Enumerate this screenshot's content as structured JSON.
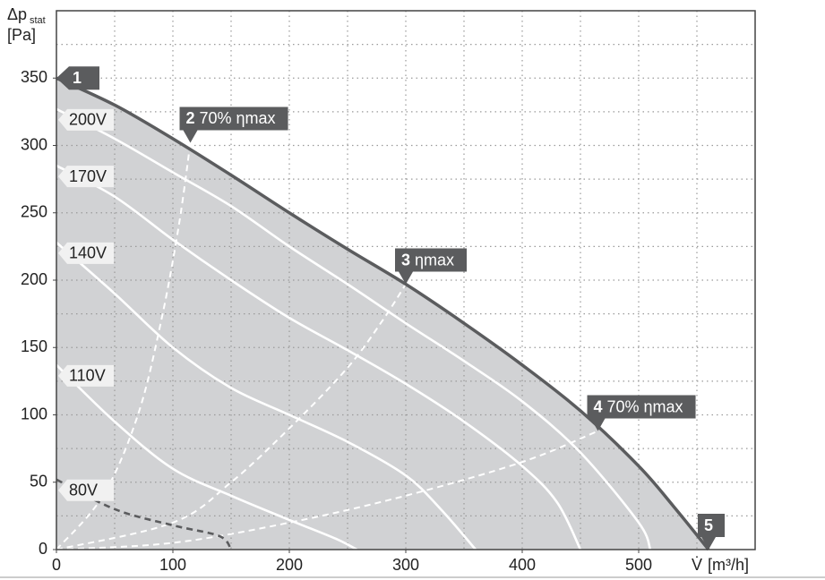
{
  "chart_data": {
    "type": "line",
    "y_label": "Δp",
    "y_label_sub": "stat",
    "y_unit": "[Pa]",
    "x_label": "V̇",
    "x_unit": "[m³/h]",
    "xlim": [
      0,
      600
    ],
    "ylim": [
      0,
      400
    ],
    "xticks": [
      0,
      100,
      200,
      300,
      400,
      500
    ],
    "yticks": [
      0,
      50,
      100,
      150,
      200,
      250,
      300,
      350
    ],
    "grid": true,
    "xgrid": [
      50,
      100,
      150,
      200,
      250,
      300,
      350,
      400,
      450,
      500,
      550
    ],
    "ygrid": [
      25,
      50,
      75,
      100,
      125,
      150,
      175,
      200,
      225,
      250,
      275,
      300,
      325,
      350,
      375
    ],
    "area": {
      "color": "#d1d2d4",
      "edge_color": "#5b5c5e",
      "x": [
        0,
        50,
        100,
        150,
        200,
        250,
        300,
        350,
        400,
        450,
        500,
        530,
        560
      ],
      "values": [
        350,
        330,
        305,
        278,
        250,
        223,
        197,
        168,
        137,
        103,
        62,
        32,
        0
      ]
    },
    "series": [
      {
        "name": "200V",
        "color": "#ffffff",
        "style": "solid",
        "x": [
          0,
          50,
          100,
          150,
          200,
          250,
          300,
          350,
          400,
          450,
          500,
          510
        ],
        "values": [
          327,
          305,
          280,
          255,
          225,
          197,
          168,
          140,
          110,
          72,
          20,
          0
        ]
      },
      {
        "name": "170V",
        "color": "#ffffff",
        "style": "solid",
        "x": [
          0,
          50,
          100,
          150,
          200,
          250,
          300,
          350,
          400,
          430,
          450
        ],
        "values": [
          285,
          262,
          230,
          200,
          172,
          148,
          123,
          95,
          62,
          35,
          0
        ]
      },
      {
        "name": "140V",
        "color": "#ffffff",
        "style": "solid",
        "x": [
          0,
          50,
          100,
          150,
          200,
          250,
          300,
          330,
          360
        ],
        "values": [
          228,
          190,
          150,
          120,
          100,
          80,
          55,
          30,
          0
        ]
      },
      {
        "name": "110V",
        "color": "#ffffff",
        "style": "solid",
        "x": [
          0,
          50,
          100,
          150,
          200,
          240,
          258
        ],
        "values": [
          137,
          95,
          60,
          40,
          22,
          8,
          0
        ]
      },
      {
        "name": "80V",
        "color": "#5b5c5e",
        "style": "dashed",
        "x": [
          0,
          50,
          100,
          140,
          150
        ],
        "values": [
          52,
          30,
          18,
          10,
          0
        ]
      }
    ],
    "curves": [
      {
        "color": "#ffffff",
        "style": "dashed",
        "x": [
          0,
          40,
          70,
          90,
          105,
          115
        ],
        "values": [
          0,
          40,
          100,
          170,
          240,
          302
        ]
      },
      {
        "color": "#ffffff",
        "style": "dashed",
        "x": [
          0,
          100,
          150,
          200,
          250,
          280,
          300
        ],
        "values": [
          0,
          20,
          50,
          90,
          135,
          170,
          197
        ]
      },
      {
        "color": "#ffffff",
        "style": "dashed",
        "x": [
          0,
          100,
          200,
          300,
          400,
          465
        ],
        "values": [
          0,
          5,
          20,
          40,
          65,
          88
        ]
      }
    ],
    "markers": [
      {
        "label": "1",
        "x": 0,
        "y": 350,
        "pointer": "left"
      },
      {
        "label": "2",
        "text": "70% ηmax",
        "x": 115,
        "y": 302,
        "pointer": "down"
      },
      {
        "label": "3",
        "text": "ηmax",
        "x": 300,
        "y": 197,
        "pointer": "down"
      },
      {
        "label": "4",
        "text": "70% ηmax",
        "x": 465,
        "y": 88,
        "pointer": "down"
      },
      {
        "label": "5",
        "x": 560,
        "y": 0,
        "pointer": "down"
      }
    ]
  }
}
